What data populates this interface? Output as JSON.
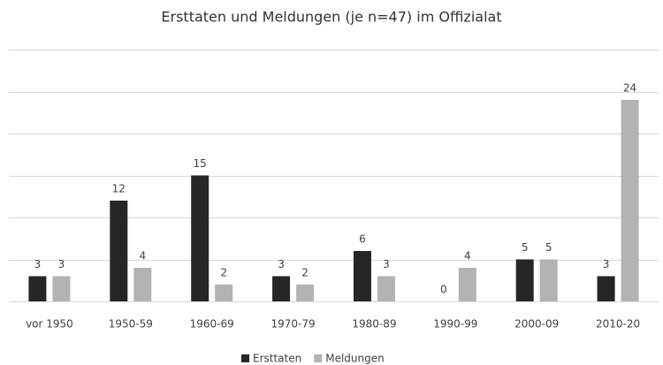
{
  "chart_data": {
    "type": "bar",
    "title": "Ersttaten und Meldungen (je n=47) im Offizialat",
    "categories": [
      "vor 1950",
      "1950-59",
      "1960-69",
      "1970-79",
      "1980-89",
      "1990-99",
      "2000-09",
      "2010-20"
    ],
    "series": [
      {
        "name": "Ersttaten",
        "color": "#262626",
        "values": [
          3,
          12,
          15,
          3,
          6,
          0,
          5,
          3
        ]
      },
      {
        "name": "Meldungen",
        "color": "#b3b3b3",
        "values": [
          3,
          4,
          2,
          2,
          3,
          4,
          5,
          24
        ]
      }
    ],
    "ylim": [
      0,
      30
    ],
    "yticks": [
      0,
      5,
      10,
      15,
      20,
      25,
      30
    ],
    "grid": true,
    "legend": "bottom"
  }
}
